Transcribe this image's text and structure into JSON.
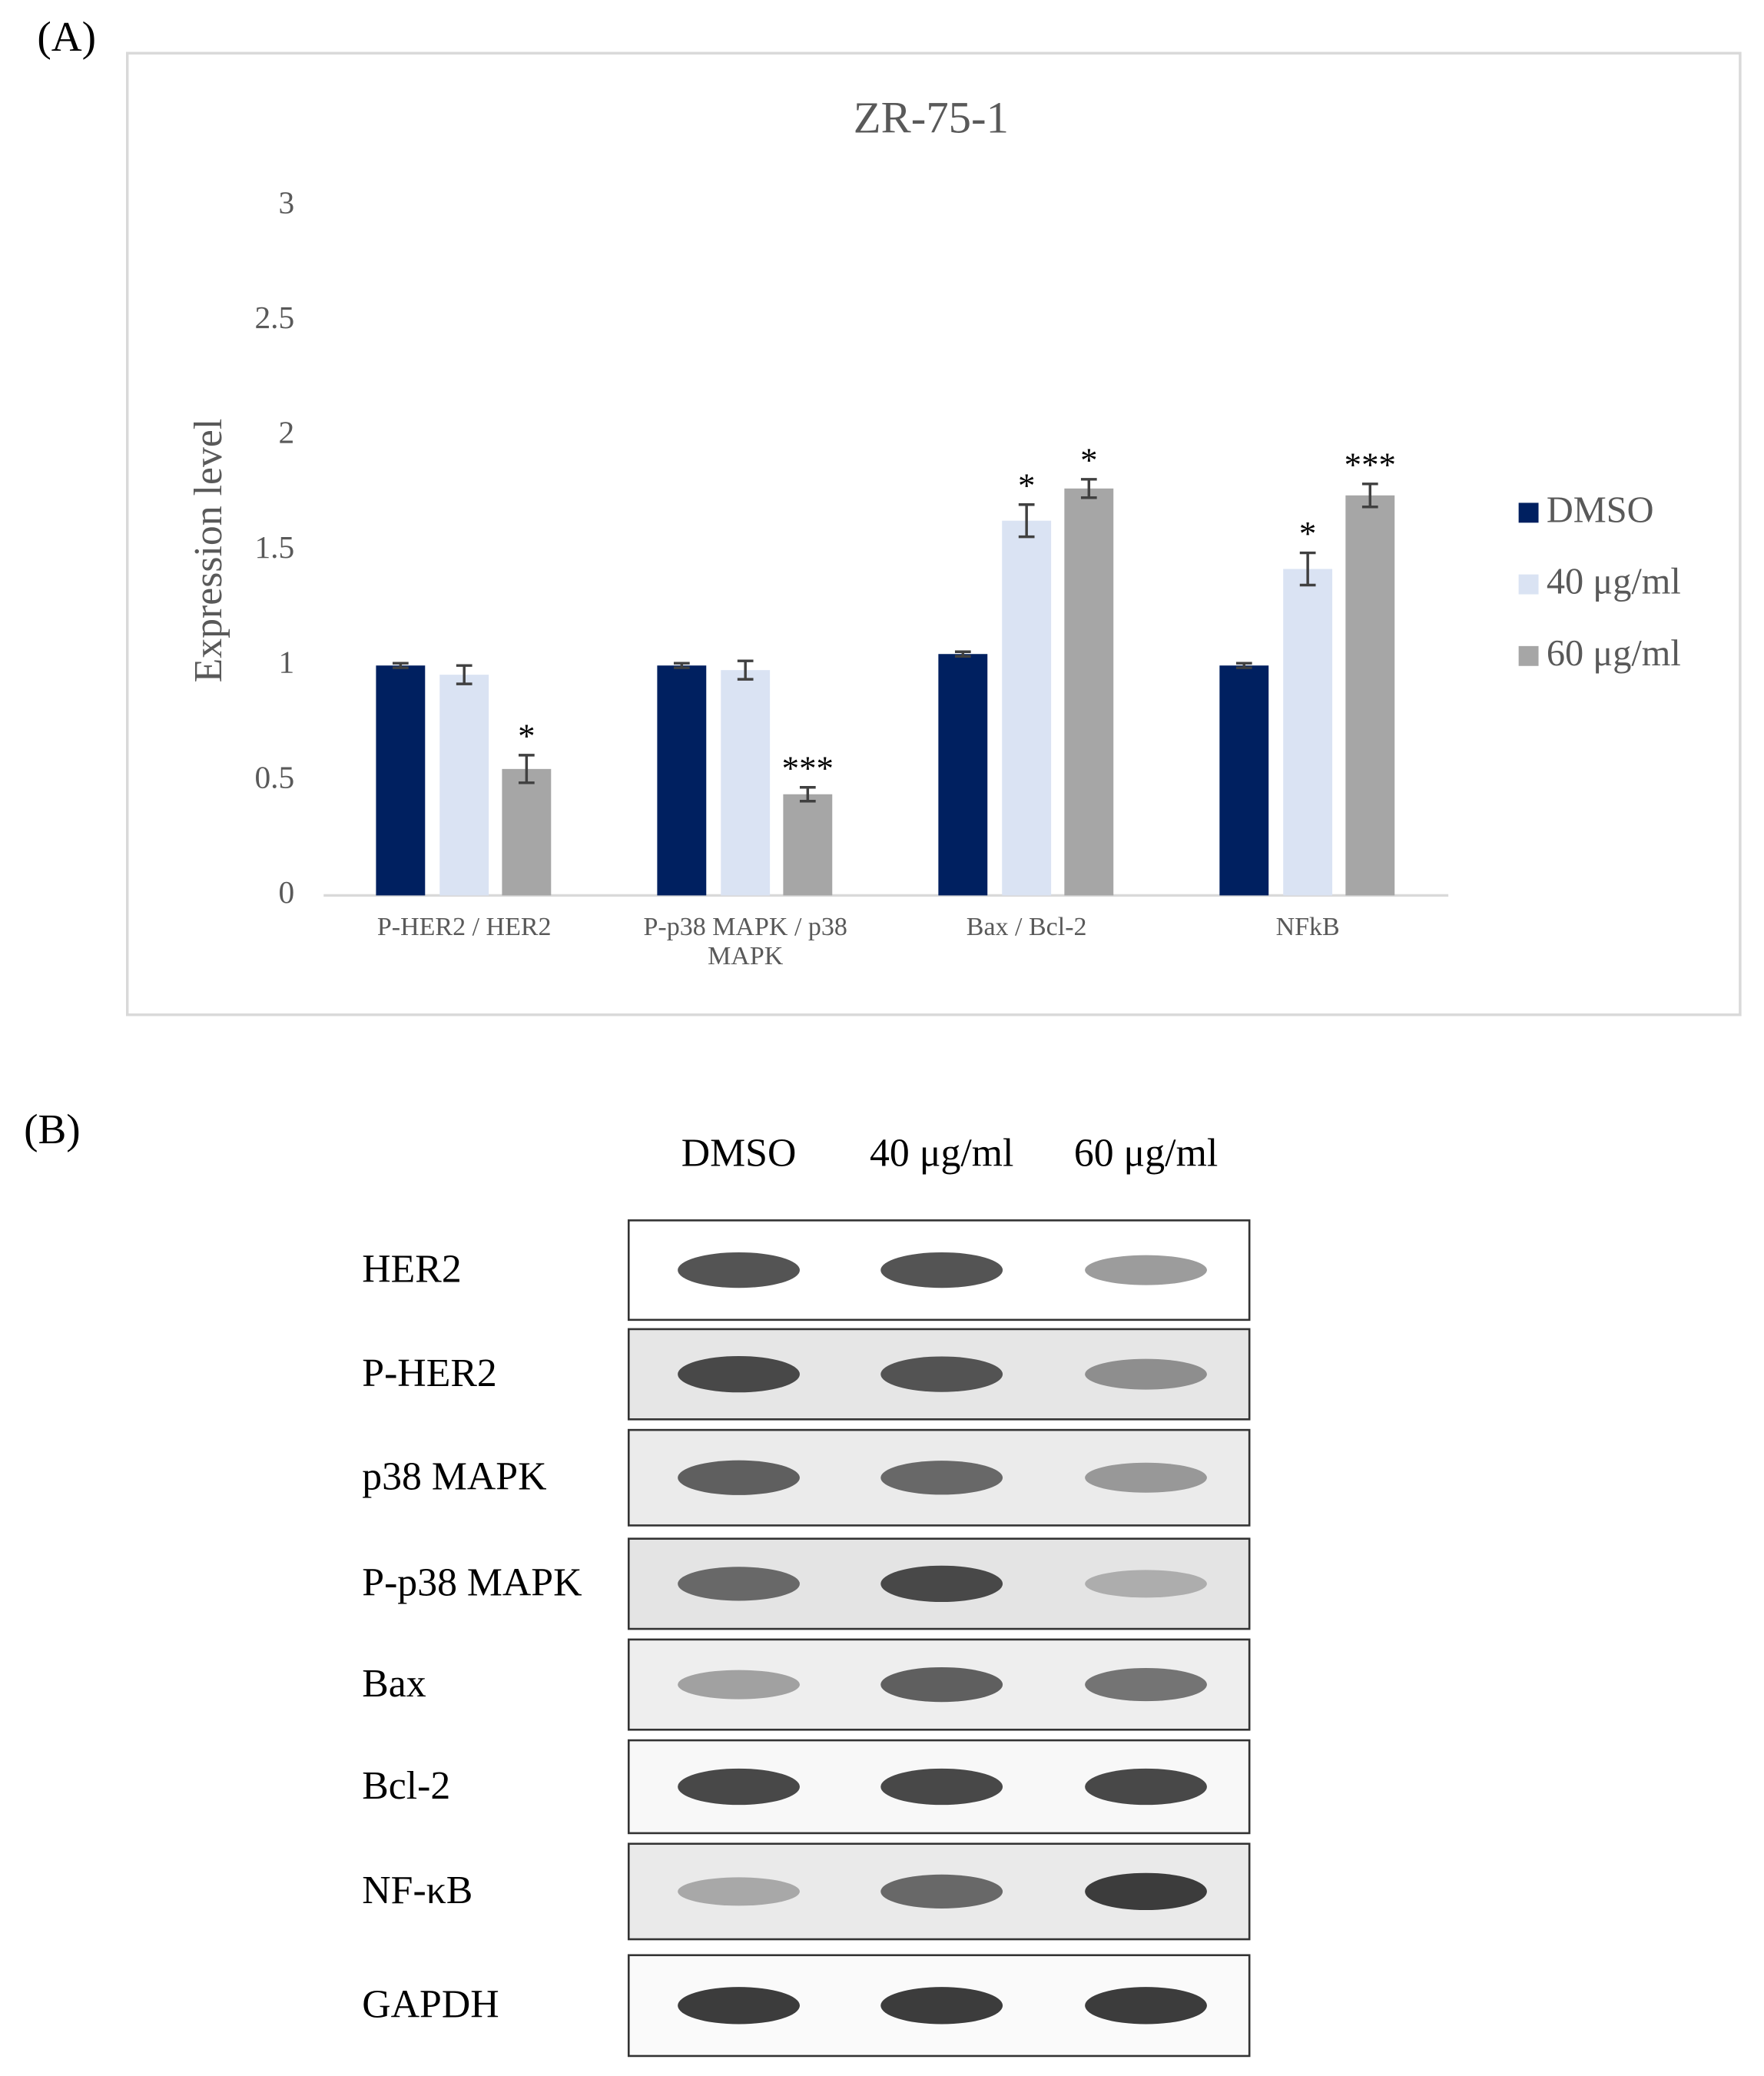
{
  "panel_a": {
    "label": "(A)"
  },
  "chart_data": {
    "type": "bar",
    "title": "ZR-75-1",
    "y_label": "Expression level",
    "categories": [
      "P-HER2 / HER2",
      "P-p38 MAPK / p38 MAPK",
      "Bax / Bcl-2",
      "NFkB"
    ],
    "series": [
      {
        "name": "DMSO",
        "color": "#002060",
        "values": [
          1,
          1,
          1.05,
          1
        ],
        "errors": [
          0.01,
          0.01,
          0.01,
          0.01
        ],
        "significance": [
          null,
          null,
          null,
          null
        ]
      },
      {
        "name": "40 μg/ml",
        "color": "#dae3f3",
        "values": [
          0.96,
          0.98,
          1.63,
          1.42
        ],
        "errors": [
          0.04,
          0.04,
          0.07,
          0.07
        ],
        "significance": [
          null,
          null,
          "*",
          "*"
        ]
      },
      {
        "name": "60 μg/ml",
        "color": "#a6a6a6",
        "values": [
          0.55,
          0.44,
          1.77,
          1.74
        ],
        "errors": [
          0.06,
          0.03,
          0.04,
          0.05
        ],
        "significance": [
          "*",
          "***",
          "*",
          "***"
        ]
      }
    ],
    "ylim": [
      0,
      3
    ],
    "yticks": [
      0,
      0.5,
      1,
      1.5,
      2,
      2.5,
      3
    ],
    "grid": false,
    "legend": "right"
  },
  "panel_b": {
    "label": "(B)",
    "lanes": [
      "DMSO",
      "40 μg/ml",
      "60 μg/ml"
    ],
    "rows": [
      "HER2",
      "P-HER2",
      "p38 MAPK",
      "P-p38 MAPK",
      "Bax",
      "Bcl-2",
      "NF-κB",
      "GAPDH"
    ]
  }
}
